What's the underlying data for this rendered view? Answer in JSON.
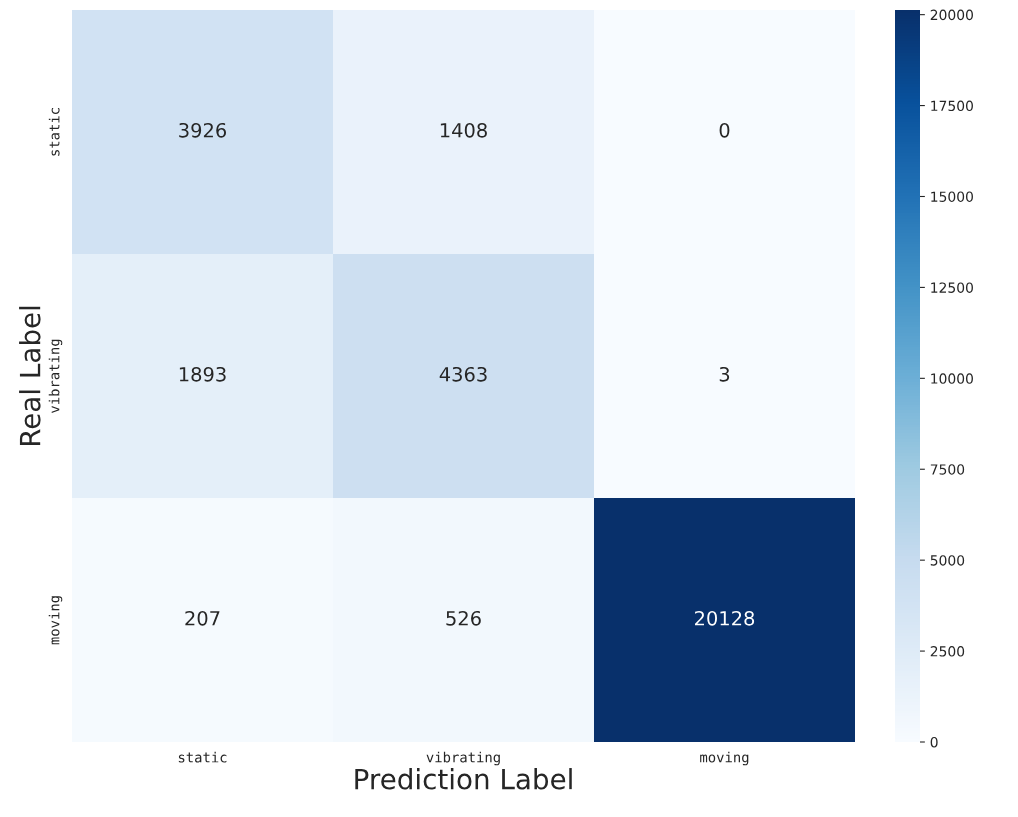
{
  "chart_data": {
    "type": "heatmap",
    "xlabel": "Prediction Label",
    "ylabel": "Real Label",
    "categories": [
      "static",
      "vibrating",
      "moving"
    ],
    "y_categories": [
      "static",
      "vibrating",
      "moving"
    ],
    "cells": [
      [
        3926,
        1408,
        0
      ],
      [
        1893,
        4363,
        3
      ],
      [
        207,
        526,
        20128
      ]
    ],
    "clim": [
      0,
      20128
    ],
    "cticks": [
      0,
      2500,
      5000,
      7500,
      10000,
      12500,
      15000,
      17500,
      20000
    ],
    "data_labels": true
  }
}
